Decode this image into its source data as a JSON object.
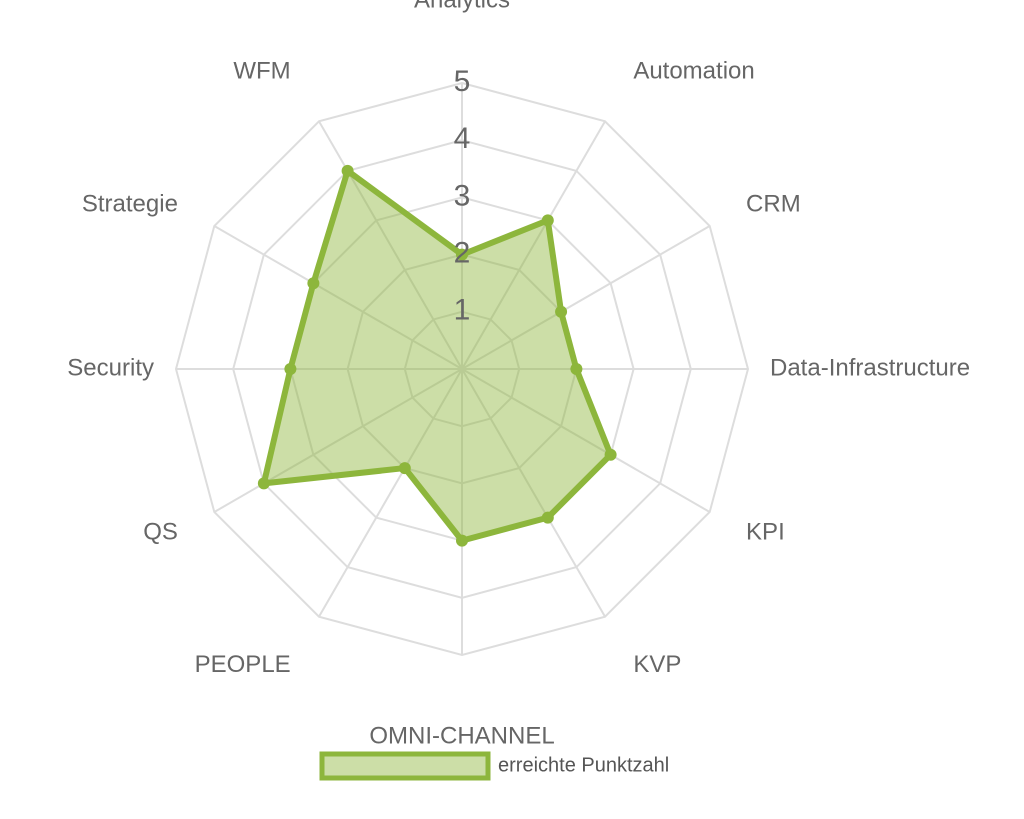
{
  "chart_data": {
    "type": "radar",
    "categories": [
      "Analytics",
      "Automation",
      "CRM",
      "Data-Infrastructure",
      "KPI",
      "KVP",
      "OMNI-CHANNEL",
      "PEOPLE",
      "QS",
      "Security",
      "Strategie",
      "WFM"
    ],
    "series": [
      {
        "name": "erreichte Punktzahl",
        "color": "#8db63c",
        "values": [
          2,
          3,
          2,
          2,
          3,
          3,
          3,
          2,
          4,
          3,
          3,
          4
        ]
      }
    ],
    "ylim": [
      0,
      5
    ],
    "yticks": [
      1,
      2,
      3,
      4,
      5
    ],
    "grid": true,
    "legend": "bottom"
  }
}
